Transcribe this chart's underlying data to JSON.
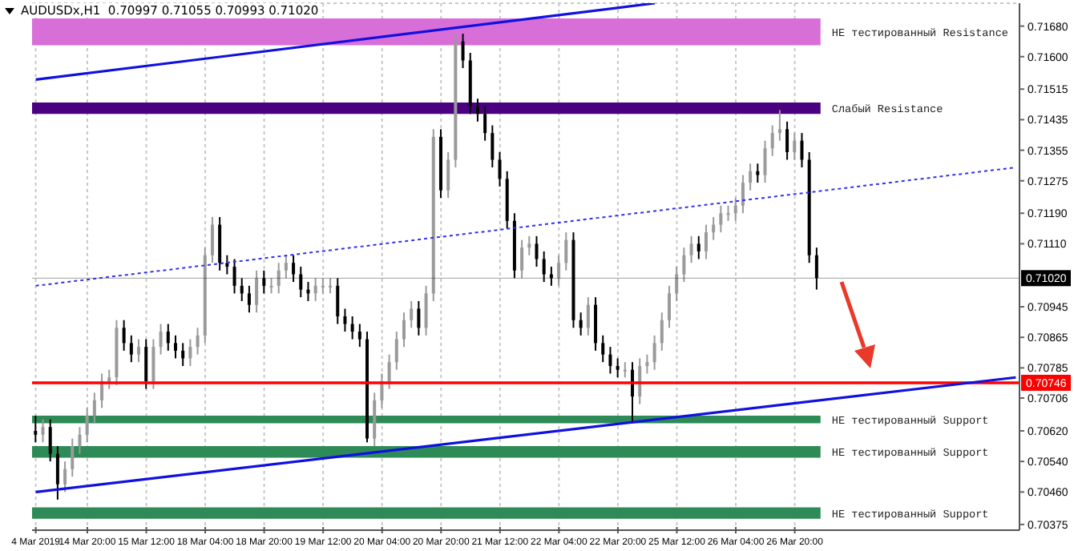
{
  "chart_data": {
    "type": "candlestick",
    "title": "AUDUSDx,H1  0.70997 0.71055 0.70993 0.71020",
    "categories": [
      "4 Mar 2019",
      null,
      null,
      null,
      null,
      null,
      null,
      "14 Mar 20:00",
      null,
      null,
      null,
      null,
      null,
      null,
      null,
      "15 Mar 12:00",
      null,
      null,
      null,
      null,
      null,
      null,
      null,
      "18 Mar 04:00",
      null,
      null,
      null,
      null,
      null,
      null,
      null,
      "18 Mar 20:00",
      null,
      null,
      null,
      null,
      null,
      null,
      null,
      "19 Mar 12:00",
      null,
      null,
      null,
      null,
      null,
      null,
      null,
      "20 Mar 04:00",
      null,
      null,
      null,
      null,
      null,
      null,
      null,
      "20 Mar 20:00",
      null,
      null,
      null,
      null,
      null,
      null,
      null,
      "21 Mar 12:00",
      null,
      null,
      null,
      null,
      null,
      null,
      null,
      "22 Mar 04:00",
      null,
      null,
      null,
      null,
      null,
      null,
      null,
      "22 Mar 20:00",
      null,
      null,
      null,
      null,
      null,
      null,
      null,
      "25 Mar 12:00",
      null,
      null,
      null,
      null,
      null,
      null,
      null,
      "26 Mar 04:00",
      null,
      null,
      null,
      null,
      null,
      null,
      null,
      "26 Mar 20:00",
      null,
      null,
      null,
      null,
      null,
      null,
      null,
      null,
      null,
      null,
      null,
      null,
      null,
      null,
      null,
      null,
      null,
      null,
      null,
      null,
      null,
      null,
      null,
      null,
      null,
      null,
      null,
      null,
      null,
      null
    ],
    "ohlc": [
      [
        0.7062,
        0.7066,
        0.7059,
        0.7061
      ],
      [
        0.7061,
        0.7065,
        0.7059,
        0.7063
      ],
      [
        0.7063,
        0.7065,
        0.7054,
        0.7056
      ],
      [
        0.7056,
        0.7058,
        0.7044,
        0.7048
      ],
      [
        0.7048,
        0.7054,
        0.7046,
        0.7052
      ],
      [
        0.7052,
        0.706,
        0.705,
        0.7058
      ],
      [
        0.7058,
        0.7063,
        0.7056,
        0.7061
      ],
      [
        0.7061,
        0.7068,
        0.7059,
        0.7066
      ],
      [
        0.7066,
        0.7072,
        0.7064,
        0.707
      ],
      [
        0.707,
        0.7077,
        0.7068,
        0.7075
      ],
      [
        0.7075,
        0.7078,
        0.7073,
        0.7076
      ],
      [
        0.7076,
        0.7091,
        0.7074,
        0.7089
      ],
      [
        0.7089,
        0.7091,
        0.7083,
        0.7085
      ],
      [
        0.7085,
        0.7087,
        0.708,
        0.7082
      ],
      [
        0.7082,
        0.7086,
        0.708,
        0.7084
      ],
      [
        0.7084,
        0.7086,
        0.7073,
        0.7075
      ],
      [
        0.7075,
        0.7086,
        0.7073,
        0.7084
      ],
      [
        0.7084,
        0.709,
        0.7082,
        0.7088
      ],
      [
        0.7088,
        0.709,
        0.7083,
        0.7085
      ],
      [
        0.7085,
        0.7087,
        0.7081,
        0.7083
      ],
      [
        0.7083,
        0.7085,
        0.7079,
        0.7081
      ],
      [
        0.7081,
        0.7086,
        0.7079,
        0.7084
      ],
      [
        0.7084,
        0.7089,
        0.7082,
        0.7087
      ],
      [
        0.7087,
        0.711,
        0.7085,
        0.7108
      ],
      [
        0.7108,
        0.7118,
        0.7106,
        0.7116
      ],
      [
        0.7116,
        0.7118,
        0.7104,
        0.7106
      ],
      [
        0.7106,
        0.7108,
        0.7103,
        0.7105
      ],
      [
        0.7105,
        0.7107,
        0.7098,
        0.71
      ],
      [
        0.71,
        0.7102,
        0.7096,
        0.7098
      ],
      [
        0.7098,
        0.71,
        0.7093,
        0.7095
      ],
      [
        0.7095,
        0.7104,
        0.7093,
        0.7102
      ],
      [
        0.7102,
        0.7104,
        0.7098,
        0.71
      ],
      [
        0.71,
        0.7102,
        0.7098,
        0.71
      ],
      [
        0.71,
        0.7106,
        0.7098,
        0.7104
      ],
      [
        0.7104,
        0.7108,
        0.7102,
        0.7106
      ],
      [
        0.7106,
        0.7108,
        0.7101,
        0.7103
      ],
      [
        0.7103,
        0.7105,
        0.7097,
        0.7099
      ],
      [
        0.7099,
        0.7101,
        0.7096,
        0.7098
      ],
      [
        0.7098,
        0.7102,
        0.7096,
        0.71
      ],
      [
        0.71,
        0.7102,
        0.7098,
        0.71
      ],
      [
        0.71,
        0.7102,
        0.7098,
        0.71
      ],
      [
        0.71,
        0.7102,
        0.709,
        0.7092
      ],
      [
        0.7092,
        0.7094,
        0.7088,
        0.709
      ],
      [
        0.709,
        0.7092,
        0.7086,
        0.7088
      ],
      [
        0.7088,
        0.709,
        0.7084,
        0.7086
      ],
      [
        0.7086,
        0.7088,
        0.7059,
        0.706
      ],
      [
        0.706,
        0.7072,
        0.7058,
        0.707
      ],
      [
        0.707,
        0.7077,
        0.7068,
        0.7075
      ],
      [
        0.7075,
        0.7082,
        0.7073,
        0.708
      ],
      [
        0.708,
        0.7088,
        0.7078,
        0.7086
      ],
      [
        0.7086,
        0.7093,
        0.7084,
        0.7091
      ],
      [
        0.7091,
        0.7096,
        0.7089,
        0.7094
      ],
      [
        0.7094,
        0.7096,
        0.7087,
        0.7089
      ],
      [
        0.7089,
        0.71,
        0.7087,
        0.7098
      ],
      [
        0.7098,
        0.7141,
        0.7096,
        0.7139
      ],
      [
        0.7139,
        0.7141,
        0.7123,
        0.7125
      ],
      [
        0.7125,
        0.7135,
        0.7123,
        0.7133
      ],
      [
        0.7133,
        0.7166,
        0.7131,
        0.7164
      ],
      [
        0.7164,
        0.7166,
        0.7157,
        0.7159
      ],
      [
        0.7159,
        0.7161,
        0.7145,
        0.7147
      ],
      [
        0.7147,
        0.7149,
        0.7143,
        0.7145
      ],
      [
        0.7145,
        0.7147,
        0.7138,
        0.714
      ],
      [
        0.714,
        0.7142,
        0.7131,
        0.7133
      ],
      [
        0.7133,
        0.7135,
        0.7126,
        0.7128
      ],
      [
        0.7128,
        0.713,
        0.7115,
        0.7117
      ],
      [
        0.7117,
        0.7119,
        0.7102,
        0.7104
      ],
      [
        0.7104,
        0.7112,
        0.7102,
        0.711
      ],
      [
        0.711,
        0.7113,
        0.7108,
        0.7111
      ],
      [
        0.7111,
        0.7113,
        0.7105,
        0.7107
      ],
      [
        0.7107,
        0.7109,
        0.7101,
        0.7103
      ],
      [
        0.7103,
        0.7105,
        0.71,
        0.7102
      ],
      [
        0.7102,
        0.7108,
        0.71,
        0.7106
      ],
      [
        0.7106,
        0.7114,
        0.7104,
        0.7112
      ],
      [
        0.7112,
        0.7114,
        0.7089,
        0.7091
      ],
      [
        0.7091,
        0.7093,
        0.7087,
        0.7089
      ],
      [
        0.7089,
        0.7097,
        0.7087,
        0.7095
      ],
      [
        0.7095,
        0.7097,
        0.7083,
        0.7085
      ],
      [
        0.7085,
        0.7087,
        0.708,
        0.7082
      ],
      [
        0.7082,
        0.7084,
        0.7077,
        0.7079
      ],
      [
        0.7079,
        0.7081,
        0.7076,
        0.7078
      ],
      [
        0.7078,
        0.708,
        0.7076,
        0.7078
      ],
      [
        0.7078,
        0.708,
        0.7064,
        0.7071
      ],
      [
        0.7071,
        0.7081,
        0.7069,
        0.7079
      ],
      [
        0.7079,
        0.7082,
        0.7077,
        0.708
      ],
      [
        0.708,
        0.7087,
        0.7078,
        0.7085
      ],
      [
        0.7085,
        0.7093,
        0.7083,
        0.7091
      ],
      [
        0.7091,
        0.71,
        0.7089,
        0.7098
      ],
      [
        0.7098,
        0.7105,
        0.7096,
        0.7103
      ],
      [
        0.7103,
        0.711,
        0.7101,
        0.7108
      ],
      [
        0.7108,
        0.7113,
        0.7106,
        0.7111
      ],
      [
        0.7111,
        0.7113,
        0.7107,
        0.7109
      ],
      [
        0.7109,
        0.7116,
        0.7107,
        0.7114
      ],
      [
        0.7114,
        0.7118,
        0.7112,
        0.7116
      ],
      [
        0.7116,
        0.7121,
        0.7114,
        0.7119
      ],
      [
        0.7119,
        0.7121,
        0.7117,
        0.7119
      ],
      [
        0.7119,
        0.7123,
        0.7117,
        0.7121
      ],
      [
        0.7121,
        0.7129,
        0.7119,
        0.7127
      ],
      [
        0.7127,
        0.7132,
        0.7125,
        0.713
      ],
      [
        0.713,
        0.7132,
        0.7127,
        0.7129
      ],
      [
        0.7129,
        0.7138,
        0.7127,
        0.7136
      ],
      [
        0.7136,
        0.7142,
        0.7134,
        0.714
      ],
      [
        0.714,
        0.7146,
        0.7138,
        0.7141
      ],
      [
        0.7141,
        0.7143,
        0.7133,
        0.7135
      ],
      [
        0.7135,
        0.714,
        0.7133,
        0.7138
      ],
      [
        0.7138,
        0.714,
        0.7131,
        0.7133
      ],
      [
        0.7133,
        0.7135,
        0.7106,
        0.7108
      ],
      [
        0.7108,
        0.711,
        0.7099,
        0.7102
      ],
      null,
      null,
      null,
      null,
      null,
      null,
      null,
      null,
      null,
      null,
      null,
      null,
      null,
      null,
      null,
      null,
      null,
      null,
      null,
      null,
      null,
      null,
      null,
      null,
      null,
      null,
      null
    ],
    "series": [
      {
        "type": "line",
        "color": "#1010e0",
        "line_style": "solid",
        "values": [
          0.7154,
          null,
          null,
          null,
          null,
          null,
          null,
          null,
          null,
          null,
          null,
          null,
          null,
          null,
          null,
          null,
          null,
          null,
          null,
          null,
          null,
          null,
          null,
          null,
          null,
          null,
          null,
          null,
          null,
          null,
          null,
          null,
          null,
          null,
          null,
          null,
          null,
          null,
          null,
          null,
          null,
          null,
          null,
          null,
          null,
          null,
          null,
          null,
          null,
          null,
          null,
          null,
          null,
          null,
          null,
          null,
          null,
          null,
          null,
          null,
          null,
          null,
          null,
          null,
          null,
          null,
          null,
          null,
          null,
          null,
          null,
          null,
          null,
          null,
          null,
          null,
          null,
          null,
          null,
          null,
          null,
          null,
          null,
          null,
          0.7174,
          null,
          null,
          null,
          null,
          null,
          null,
          null,
          null,
          null,
          null,
          null,
          null,
          null,
          null,
          null,
          null,
          null,
          null,
          null,
          null,
          null,
          null,
          null,
          null,
          null,
          null,
          null,
          null,
          null,
          null,
          null,
          null,
          null,
          null,
          null,
          null,
          null,
          null,
          null,
          null,
          null,
          null,
          null,
          null,
          null,
          null,
          null,
          null,
          null
        ]
      },
      {
        "type": "line",
        "color": "#3030f0",
        "line_style": "dotted",
        "values": [
          0.71,
          null,
          null,
          null,
          null,
          null,
          null,
          null,
          null,
          null,
          null,
          null,
          null,
          null,
          null,
          null,
          null,
          null,
          null,
          null,
          null,
          null,
          null,
          null,
          null,
          null,
          null,
          null,
          null,
          null,
          null,
          null,
          null,
          null,
          null,
          null,
          null,
          null,
          null,
          null,
          null,
          null,
          null,
          null,
          null,
          null,
          null,
          null,
          null,
          null,
          null,
          null,
          null,
          null,
          null,
          null,
          null,
          null,
          null,
          null,
          null,
          null,
          null,
          null,
          null,
          null,
          null,
          null,
          null,
          null,
          null,
          null,
          null,
          null,
          null,
          null,
          null,
          null,
          null,
          null,
          null,
          null,
          null,
          null,
          null,
          null,
          null,
          null,
          null,
          null,
          null,
          null,
          null,
          null,
          null,
          null,
          null,
          null,
          null,
          null,
          null,
          null,
          null,
          null,
          null,
          null,
          null,
          null,
          null,
          null,
          null,
          null,
          null,
          null,
          null,
          null,
          null,
          null,
          null,
          null,
          null,
          null,
          null,
          null,
          null,
          null,
          null,
          null,
          null,
          null,
          null,
          null,
          null,
          0.7131
        ]
      },
      {
        "type": "line",
        "color": "#1010e0",
        "line_style": "solid",
        "values": [
          0.7046,
          null,
          null,
          null,
          null,
          null,
          null,
          null,
          null,
          null,
          null,
          null,
          null,
          null,
          null,
          null,
          null,
          null,
          null,
          null,
          null,
          null,
          null,
          null,
          null,
          null,
          null,
          null,
          null,
          null,
          null,
          null,
          null,
          null,
          null,
          null,
          null,
          null,
          null,
          null,
          null,
          null,
          null,
          null,
          null,
          null,
          null,
          null,
          null,
          null,
          null,
          null,
          null,
          null,
          null,
          null,
          null,
          null,
          null,
          null,
          null,
          null,
          null,
          null,
          null,
          null,
          null,
          null,
          null,
          null,
          null,
          null,
          null,
          null,
          null,
          null,
          null,
          null,
          null,
          null,
          null,
          null,
          null,
          null,
          null,
          null,
          null,
          null,
          null,
          null,
          null,
          null,
          null,
          null,
          null,
          null,
          null,
          null,
          null,
          null,
          null,
          null,
          null,
          null,
          null,
          null,
          null,
          null,
          null,
          null,
          null,
          null,
          null,
          null,
          null,
          null,
          null,
          null,
          null,
          null,
          null,
          null,
          null,
          null,
          null,
          null,
          null,
          null,
          null,
          null,
          null,
          null,
          null,
          0.7076
        ]
      }
    ],
    "ylim": [
      0.7036,
      0.7174
    ],
    "yticks": [
      {
        "value": 0.7168,
        "label": "0.71680"
      },
      {
        "value": 0.716,
        "label": "0.71600"
      },
      {
        "value": 0.71515,
        "label": "0.71515"
      },
      {
        "value": 0.71435,
        "label": "0.71435"
      },
      {
        "value": 0.71355,
        "label": "0.71355"
      },
      {
        "value": 0.71275,
        "label": "0.71275"
      },
      {
        "value": 0.7119,
        "label": "0.71190"
      },
      {
        "value": 0.7111,
        "label": "0.71110"
      },
      {
        "value": 0.70945,
        "label": "0.70945"
      },
      {
        "value": 0.70865,
        "label": "0.70865"
      },
      {
        "value": 0.70785,
        "label": "0.70785"
      },
      {
        "value": 0.70706,
        "label": "0.70706"
      },
      {
        "value": 0.7062,
        "label": "0.70620"
      },
      {
        "value": 0.7054,
        "label": "0.70540"
      },
      {
        "value": 0.7046,
        "label": "0.70460"
      },
      {
        "value": 0.70375,
        "label": "0.70375"
      }
    ],
    "ref_lines": [
      {
        "axis": "y",
        "value": 0.7102,
        "label": "0.71020",
        "color": "#000000"
      },
      {
        "axis": "y",
        "value": 0.70746,
        "label": "0.70746",
        "color": "#ff0000"
      }
    ],
    "bands": [
      {
        "axis": "y",
        "from": 0.7163,
        "to": 0.717,
        "label": "НЕ тестированный Resistance",
        "color": "#d86ed8"
      },
      {
        "axis": "y",
        "from": 0.7145,
        "to": 0.7148,
        "label": "Слабый Resistance",
        "color": "#4b0082"
      },
      {
        "axis": "y",
        "from": 0.7064,
        "to": 0.7066,
        "label": "НЕ тестированный Support",
        "color": "#2e8b57"
      },
      {
        "axis": "y",
        "from": 0.7055,
        "to": 0.7058,
        "label": "НЕ тестированный Support",
        "color": "#2e8b57"
      },
      {
        "axis": "y",
        "from": 0.7039,
        "to": 0.7042,
        "label": "НЕ тестированный Support",
        "color": "#2e8b57"
      }
    ],
    "grid": true
  }
}
